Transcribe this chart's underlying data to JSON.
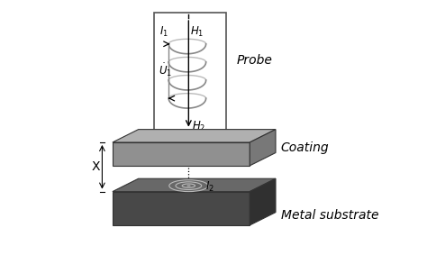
{
  "probe_label": "Probe",
  "coating_label": "Coating",
  "substrate_label": "Metal substrate",
  "I1_text": "$I_1$",
  "H1_text": "$H_1$",
  "U1_text": "$\\dot{U}_1$",
  "H2_text": "$H_2$",
  "I2_text": "$I_2$",
  "X_text": "X",
  "coating_color": "#909090",
  "coating_top_color": "#b0b0b0",
  "coating_right_color": "#787878",
  "substrate_color": "#484848",
  "substrate_top_color": "#686868",
  "substrate_right_color": "#303030",
  "box_edge_color": "#555555",
  "coil_color": "#888888",
  "arrow_color": "#000000",
  "eddy_color": "#bbbbbb"
}
